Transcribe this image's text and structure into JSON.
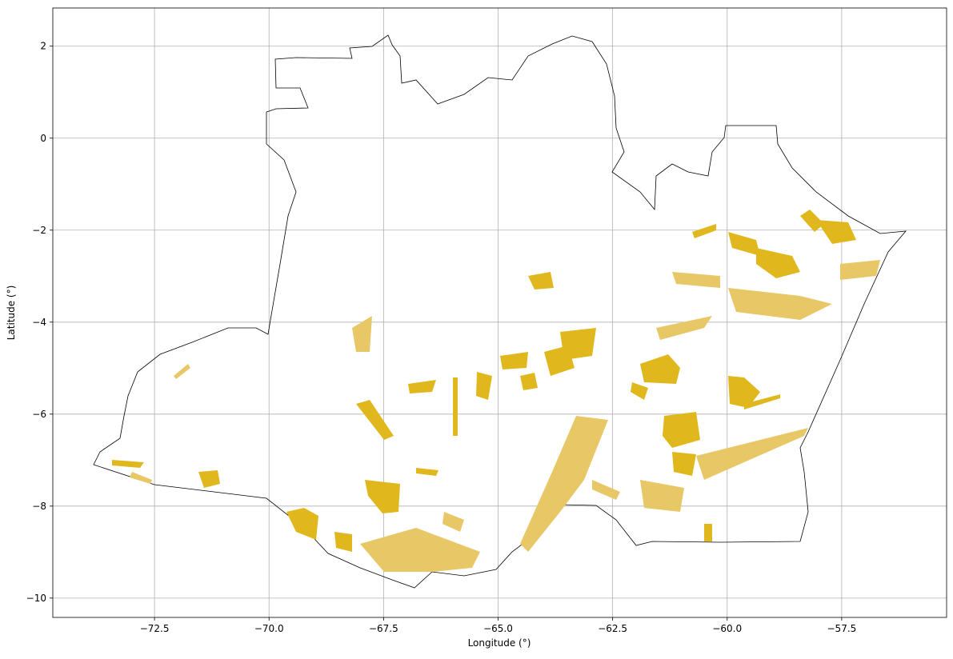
{
  "chart_data": {
    "type": "map",
    "xlabel": "Longitude (°)",
    "ylabel": "Latitude (°)",
    "xlim": [
      -74.72,
      -55.21
    ],
    "ylim": [
      -10.42,
      2.83
    ],
    "xticks": [
      {
        "value": -72.5,
        "label": "−72.5"
      },
      {
        "value": -70,
        "label": "−70.0"
      },
      {
        "value": -67.5,
        "label": "−67.5"
      },
      {
        "value": -65,
        "label": "−65.0"
      },
      {
        "value": -62.5,
        "label": "−62.5"
      },
      {
        "value": -60,
        "label": "−60.0"
      },
      {
        "value": -57.5,
        "label": "−57.5"
      }
    ],
    "yticks": [
      2,
      0,
      {
        "value": -2,
        "label": "−2"
      },
      {
        "value": -4,
        "label": "−4"
      },
      {
        "value": -6,
        "label": "−6"
      },
      {
        "value": -8,
        "label": "−8"
      },
      {
        "value": -10,
        "label": "−10"
      }
    ],
    "grid": true
  }
}
